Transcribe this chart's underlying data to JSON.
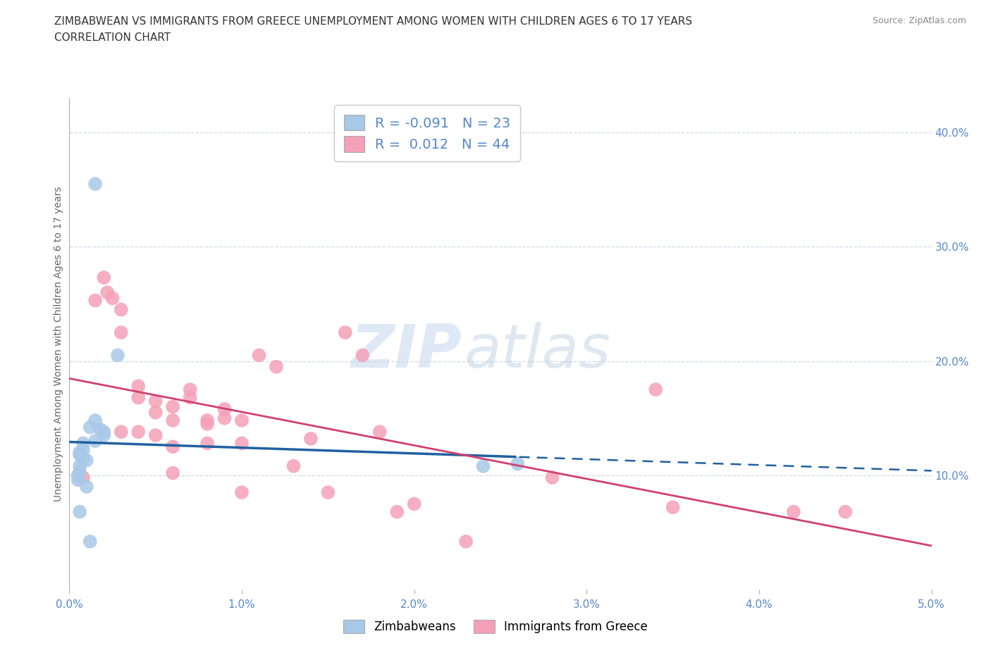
{
  "title_line1": "ZIMBABWEAN VS IMMIGRANTS FROM GREECE UNEMPLOYMENT AMONG WOMEN WITH CHILDREN AGES 6 TO 17 YEARS",
  "title_line2": "CORRELATION CHART",
  "source": "Source: ZipAtlas.com",
  "ylabel": "Unemployment Among Women with Children Ages 6 to 17 years",
  "xmin": 0.0,
  "xmax": 0.05,
  "ymin": 0.0,
  "ymax": 0.43,
  "xticks": [
    0.0,
    0.01,
    0.02,
    0.03,
    0.04,
    0.05
  ],
  "yticks_right": [
    0.1,
    0.2,
    0.3,
    0.4
  ],
  "blue_color": "#a8c8e8",
  "pink_color": "#f4a0b8",
  "blue_line_color": "#2060a0",
  "pink_line_color": "#d04070",
  "R_blue": -0.091,
  "N_blue": 23,
  "R_pink": 0.012,
  "N_pink": 44,
  "blue_scatter_x": [
    0.0015,
    0.0028,
    0.0015,
    0.0012,
    0.0018,
    0.002,
    0.002,
    0.0015,
    0.0008,
    0.0008,
    0.0006,
    0.0006,
    0.0008,
    0.001,
    0.0006,
    0.0006,
    0.0005,
    0.0005,
    0.001,
    0.0006,
    0.0012,
    0.024,
    0.026
  ],
  "blue_scatter_y": [
    0.355,
    0.205,
    0.148,
    0.142,
    0.14,
    0.138,
    0.135,
    0.13,
    0.128,
    0.122,
    0.12,
    0.118,
    0.115,
    0.113,
    0.108,
    0.103,
    0.1,
    0.096,
    0.09,
    0.068,
    0.042,
    0.108,
    0.11
  ],
  "pink_scatter_x": [
    0.0008,
    0.0015,
    0.002,
    0.0022,
    0.0025,
    0.003,
    0.003,
    0.003,
    0.004,
    0.004,
    0.004,
    0.005,
    0.005,
    0.005,
    0.006,
    0.006,
    0.006,
    0.006,
    0.007,
    0.007,
    0.008,
    0.008,
    0.008,
    0.009,
    0.009,
    0.01,
    0.01,
    0.01,
    0.011,
    0.012,
    0.013,
    0.014,
    0.015,
    0.016,
    0.017,
    0.018,
    0.019,
    0.02,
    0.023,
    0.028,
    0.034,
    0.035,
    0.042,
    0.045
  ],
  "pink_scatter_y": [
    0.098,
    0.253,
    0.273,
    0.26,
    0.255,
    0.245,
    0.225,
    0.138,
    0.178,
    0.168,
    0.138,
    0.165,
    0.155,
    0.135,
    0.16,
    0.148,
    0.125,
    0.102,
    0.175,
    0.168,
    0.148,
    0.145,
    0.128,
    0.158,
    0.15,
    0.148,
    0.128,
    0.085,
    0.205,
    0.195,
    0.108,
    0.132,
    0.085,
    0.225,
    0.205,
    0.138,
    0.068,
    0.075,
    0.042,
    0.098,
    0.175,
    0.072,
    0.068,
    0.068
  ],
  "watermark_zip": "ZIP",
  "watermark_atlas": "atlas",
  "background_color": "#ffffff",
  "grid_color": "#d0d8e8",
  "tick_color": "#5588cc",
  "label_color": "#666666"
}
